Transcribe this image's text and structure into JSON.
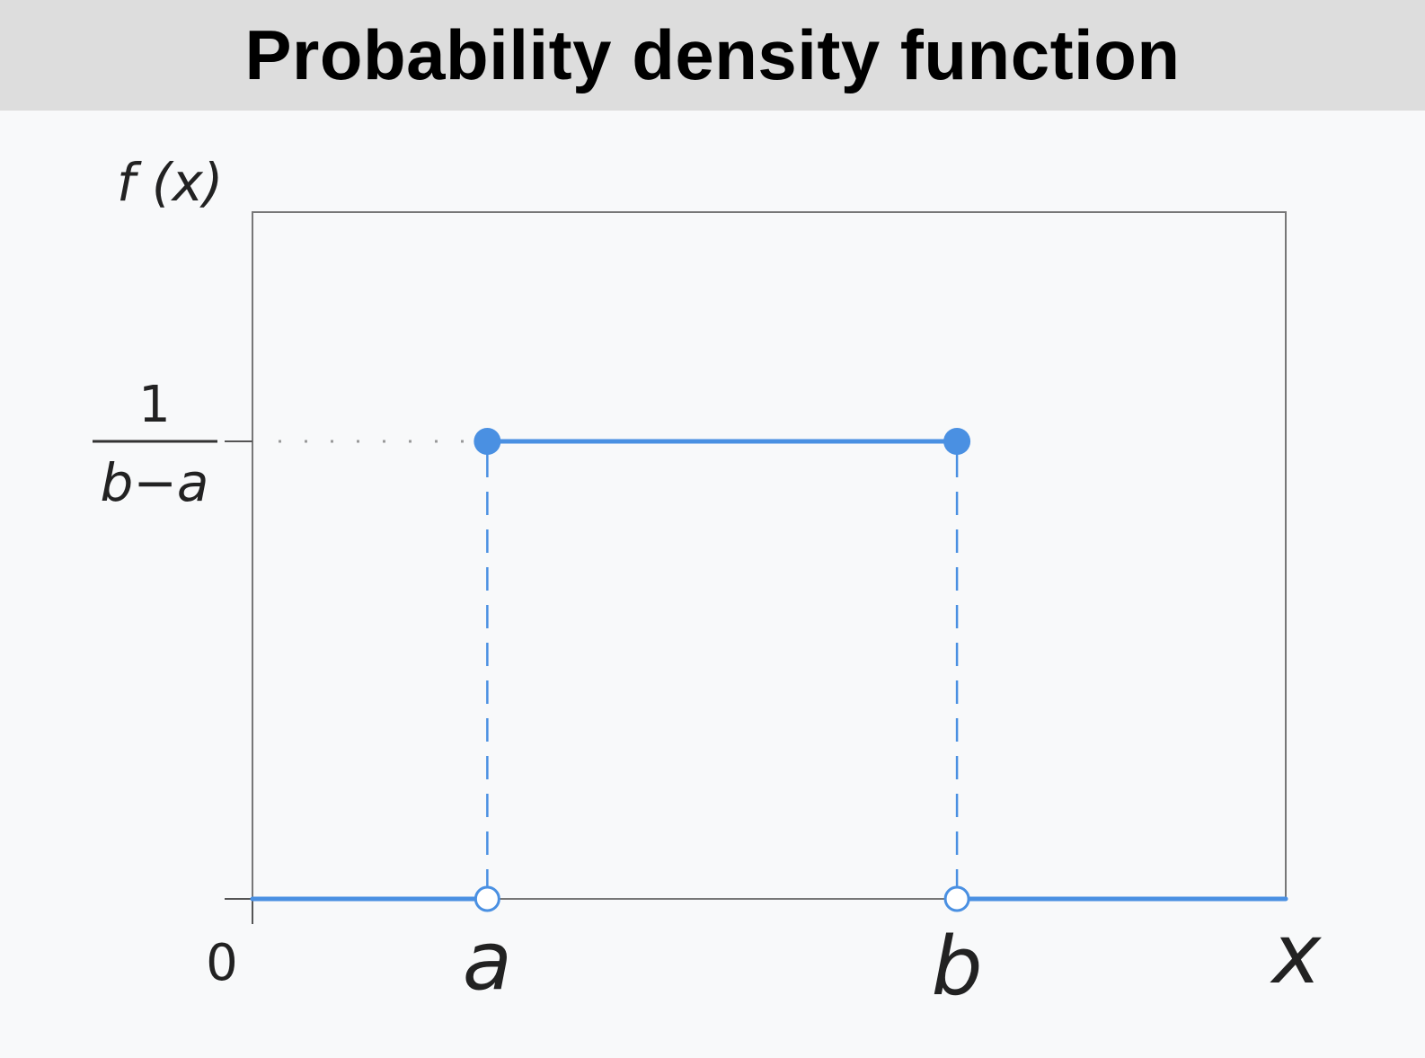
{
  "title": "Probability density function",
  "chart_data": {
    "type": "line",
    "title": "Probability density function",
    "ylabel": "f (x)",
    "xlabel": "x",
    "x_tick_labels": [
      "0",
      "a",
      "b"
    ],
    "y_tick_labels": {
      "numerator": "1",
      "denominator": "b−a"
    },
    "x_scale": {
      "a": 1,
      "b": 3,
      "max": 4.4
    },
    "y_scale": {
      "h": 1,
      "max": 1.5
    },
    "series": [
      {
        "segments": [
          {
            "x": [
              0,
              1
            ],
            "y": [
              0,
              0
            ]
          },
          {
            "x": [
              1,
              3
            ],
            "y": [
              1,
              1
            ]
          },
          {
            "x": [
              3,
              4.4
            ],
            "y": [
              0,
              0
            ]
          }
        ],
        "closed_points": [
          {
            "x": 1,
            "y": 1
          },
          {
            "x": 3,
            "y": 1
          }
        ],
        "open_points": [
          {
            "x": 1,
            "y": 0
          },
          {
            "x": 3,
            "y": 0
          }
        ],
        "dashed_verticals": [
          {
            "x": 1,
            "y": [
              0,
              1
            ]
          },
          {
            "x": 3,
            "y": [
              0,
              1
            ]
          }
        ]
      }
    ],
    "grid": false,
    "colors": {
      "series": "#4a90e2",
      "axis": "#555555",
      "dotted": "#999999"
    }
  }
}
